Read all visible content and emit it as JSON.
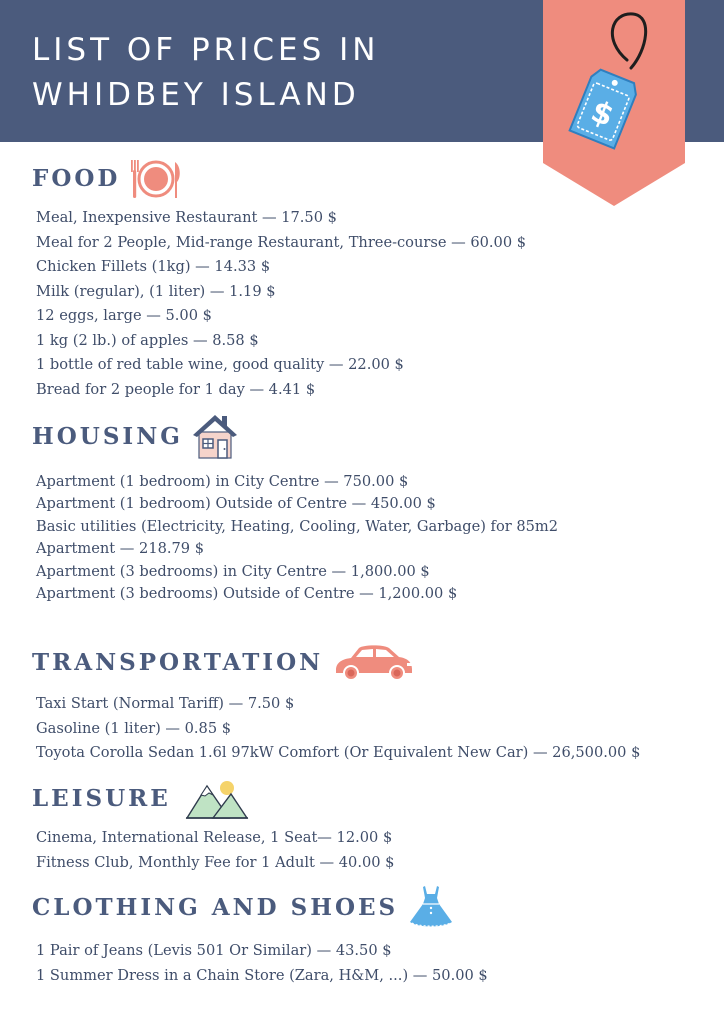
{
  "header": {
    "title": "LIST OF PRICES IN WHIDBEY ISLAND"
  },
  "colors": {
    "header_bg": "#4b5b7d",
    "banner": "#ef8c7e",
    "tag": "#5aaee6",
    "heading": "#4b5b7d"
  },
  "sections": [
    {
      "title": "FOOD",
      "icon": "plate-cutlery-icon",
      "items": [
        "Meal, Inexpensive Restaurant — 17.50 $",
        "Meal for 2 People, Mid-range Restaurant, Three-course — 60.00 $",
        "Chicken Fillets (1kg) — 14.33 $",
        "Milk (regular), (1 liter) — 1.19 $",
        "12 eggs, large — 5.00 $",
        "1 kg (2 lb.) of apples — 8.58 $",
        "1 bottle of red table wine, good quality — 22.00 $",
        "Bread for 2 people for 1 day — 4.41 $"
      ]
    },
    {
      "title": "HOUSING",
      "icon": "house-icon",
      "items": [
        "Apartment (1 bedroom) in City Centre — 750.00 $",
        "Apartment (1 bedroom) Outside of Centre — 450.00 $",
        "Basic utilities (Electricity, Heating, Cooling, Water, Garbage) for 85m2",
        "Apartment — 218.79 $",
        "Apartment (3 bedrooms) in City Centre — 1,800.00 $",
        "Apartment (3 bedrooms) Outside of Centre — 1,200.00 $"
      ]
    },
    {
      "title": "TRANSPORTATION",
      "icon": "car-icon",
      "items": [
        "Taxi Start (Normal Tariff) — 7.50 $",
        "Gasoline (1 liter) — 0.85 $",
        "Toyota Corolla Sedan 1.6l 97kW Comfort (Or Equivalent New Car) — 26,500.00 $"
      ]
    },
    {
      "title": "LEISURE",
      "icon": "mountain-icon",
      "items": [
        "Cinema, International Release, 1 Seat— 12.00 $",
        "Fitness Club, Monthly Fee for 1 Adult — 40.00 $"
      ]
    },
    {
      "title": "CLOTHING AND SHOES",
      "icon": "dress-icon",
      "items": [
        "1 Pair of Jeans (Levis 501 Or Similar) — 43.50 $",
        "1 Summer Dress in a Chain Store (Zara, H&M, ...) — 50.00 $"
      ]
    }
  ]
}
